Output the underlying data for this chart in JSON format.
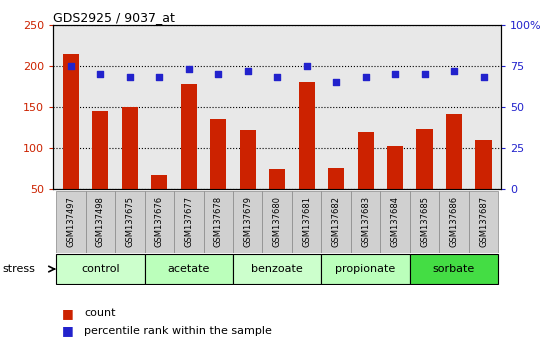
{
  "title": "GDS2925 / 9037_at",
  "samples": [
    "GSM137497",
    "GSM137498",
    "GSM137675",
    "GSM137676",
    "GSM137677",
    "GSM137678",
    "GSM137679",
    "GSM137680",
    "GSM137681",
    "GSM137682",
    "GSM137683",
    "GSM137684",
    "GSM137685",
    "GSM137686",
    "GSM137687"
  ],
  "counts": [
    215,
    145,
    150,
    68,
    178,
    135,
    122,
    75,
    180,
    76,
    120,
    103,
    123,
    142,
    110
  ],
  "percentiles": [
    75,
    70,
    68,
    68,
    73,
    70,
    72,
    68,
    75,
    65,
    68,
    70,
    70,
    72,
    68
  ],
  "ylim_left": [
    50,
    250
  ],
  "ylim_right": [
    0,
    100
  ],
  "yticks_left": [
    50,
    100,
    150,
    200,
    250
  ],
  "yticks_right": [
    0,
    25,
    50,
    75,
    100
  ],
  "ytick_right_labels": [
    "0",
    "25",
    "50",
    "75",
    "100%"
  ],
  "groups": [
    {
      "label": "control",
      "start": 0,
      "end": 3
    },
    {
      "label": "acetate",
      "start": 3,
      "end": 6
    },
    {
      "label": "benzoate",
      "start": 6,
      "end": 9
    },
    {
      "label": "propionate",
      "start": 9,
      "end": 12
    },
    {
      "label": "sorbate",
      "start": 12,
      "end": 15
    }
  ],
  "group_colors": [
    "#ccffcc",
    "#bbffbb",
    "#ccffcc",
    "#bbffbb",
    "#44dd44"
  ],
  "bar_color": "#cc2200",
  "dot_color": "#2222cc",
  "background_color": "#ffffff",
  "axis_bg": "#e8e8e8",
  "tick_label_bg": "#d0d0d0",
  "grid_color": "#000000",
  "stress_label": "stress",
  "legend_count": "count",
  "legend_percentile": "percentile rank within the sample"
}
